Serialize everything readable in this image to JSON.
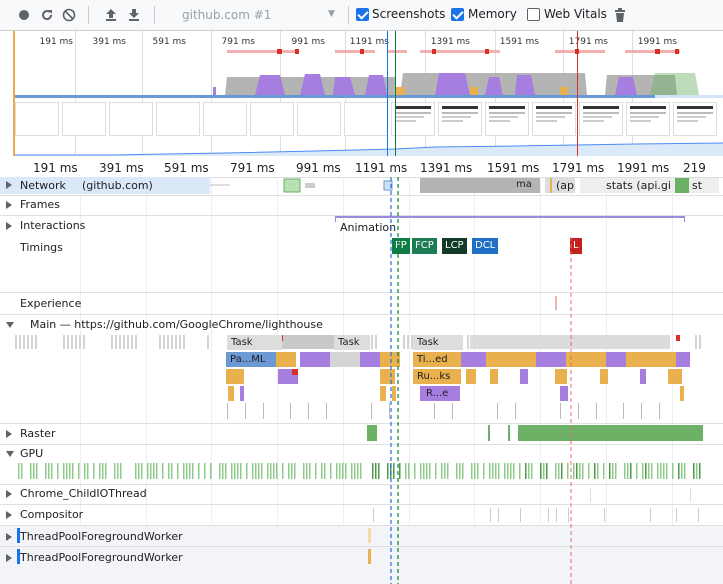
{
  "toolbar": {
    "url_label": "github.com #1",
    "screenshots_label": "Screenshots",
    "memory_label": "Memory",
    "web_vitals_label": "Web Vitals",
    "screenshots_checked": true,
    "memory_checked": true,
    "web_vitals_checked": false
  },
  "overview": {
    "ticks": [
      "191 ms",
      "391 ms",
      "591 ms",
      "791 ms",
      "991 ms",
      "1191 ms",
      "1391 ms",
      "1591 ms",
      "1791 ms",
      "1991 ms"
    ]
  },
  "ruler": {
    "ticks": [
      "191 ms",
      "391 ms",
      "591 ms",
      "791 ms",
      "991 ms",
      "1191 ms",
      "1391 ms",
      "1591 ms",
      "1791 ms",
      "1991 ms",
      "219"
    ]
  },
  "tracks": {
    "network": "Network",
    "network_host": "(github.com)",
    "network_bar_1": "ma",
    "network_bar_2": "(ap",
    "network_bar_3": "stats (api.gi",
    "network_bar_4": "st",
    "frames": "Frames",
    "interactions": "Interactions",
    "animation": "Animation",
    "timings": "Timings",
    "experience": "Experience",
    "main": "Main — https://github.com/GoogleChrome/lighthouse",
    "raster": "Raster",
    "gpu": "GPU",
    "child_io": "Chrome_ChildIOThread",
    "compositor": "Compositor",
    "pool1": "ThreadPoolForegroundWorker",
    "pool2": "ThreadPoolForegroundWorker"
  },
  "timings": {
    "fp": "FP",
    "fcp": "FCP",
    "lcp": "LCP",
    "dcl": "DCL",
    "l": "L"
  },
  "main_tasks": {
    "task1": "Task",
    "task2": "Task",
    "task3": "Task",
    "parse_html": "Pa...ML",
    "timer": "Ti...ed",
    "run_tasks": "Ru...ks",
    "r_e": "R...e"
  },
  "colors": {
    "scripting": "#e9b04e",
    "rendering": "#a57ee0",
    "loading": "#6a99d3",
    "painting": "#6cb166",
    "fp": "#0d7d44",
    "fcp": "#1c7c53",
    "lcp": "#113b28",
    "dcl": "#1f6fc5",
    "load": "#c5221f",
    "selection": "#1a73e8"
  }
}
